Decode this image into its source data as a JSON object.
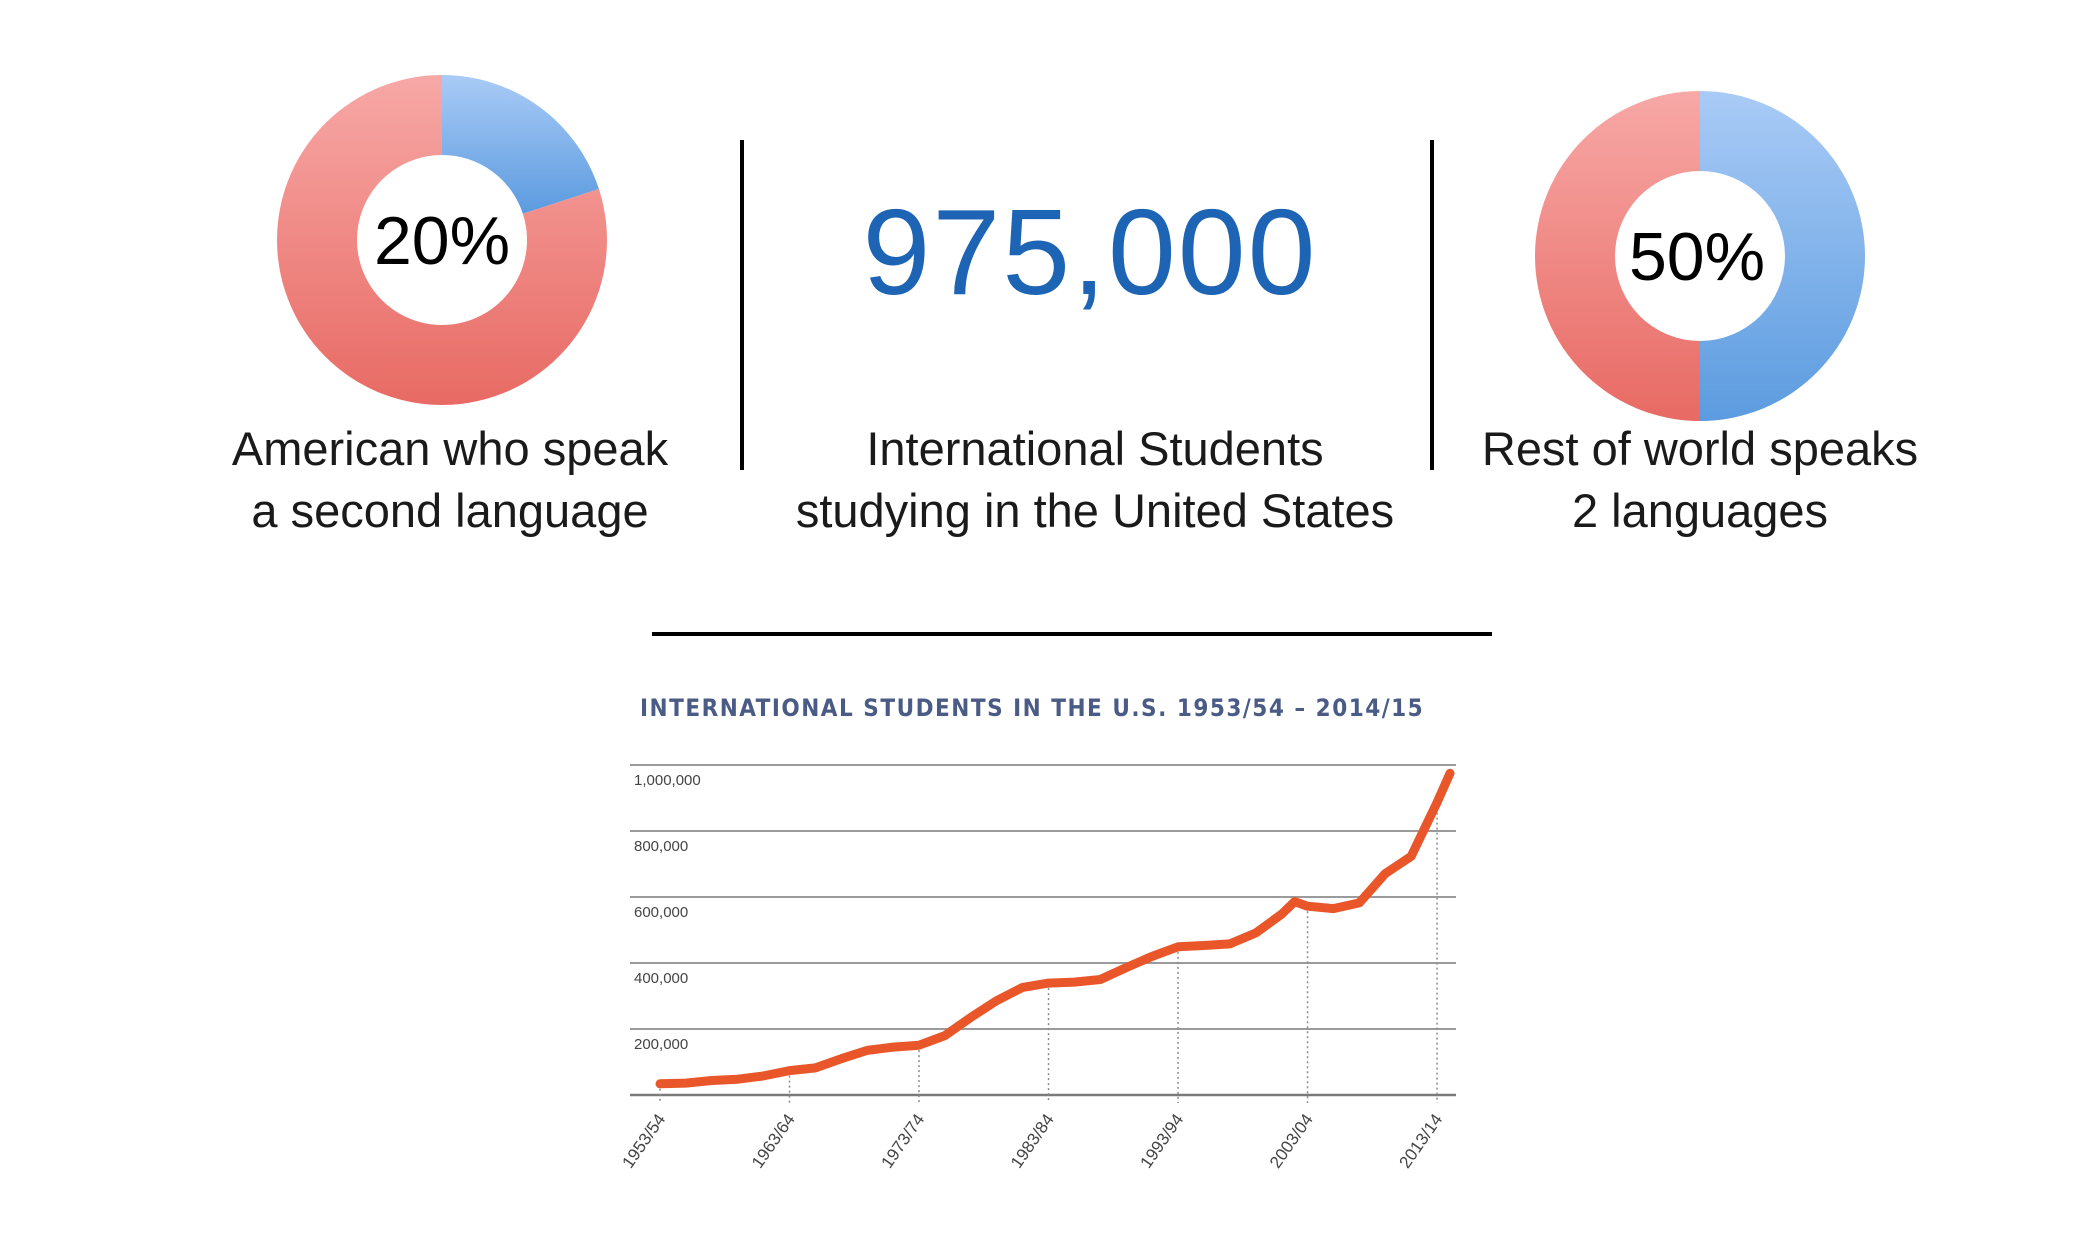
{
  "left_stat": {
    "percent_label": "20%",
    "caption_line1": "American who speak",
    "caption_line2": "a second language",
    "value_fraction": 0.2,
    "colors": {
      "primary": "#5b9bdf",
      "secondary": "#e86a64"
    }
  },
  "middle_stat": {
    "number": "975,000",
    "caption_line1": "International Students",
    "caption_line2": "studying in the United States",
    "color": "#1d64b4"
  },
  "right_stat": {
    "percent_label": "50%",
    "caption_line1": "Rest of world speaks",
    "caption_line2": "2 languages",
    "value_fraction": 0.5,
    "colors": {
      "primary": "#5b9bdf",
      "secondary": "#e86a64"
    }
  },
  "chart_data": {
    "type": "line",
    "title": "INTERNATIONAL STUDENTS IN THE U.S. 1953/54 – 2014/15",
    "xlabel": "",
    "ylabel": "",
    "ylim": [
      0,
      1000000
    ],
    "y_ticks": [
      "1,000,000",
      "800,000",
      "600,000",
      "400,000",
      "200,000"
    ],
    "y_tick_values": [
      1000000,
      800000,
      600000,
      400000,
      200000
    ],
    "x_tick_labels": [
      "1953/54",
      "1963/64",
      "1973/74",
      "1983/84",
      "1993/94",
      "2003/04",
      "2013/14"
    ],
    "x_tick_years": [
      1953,
      1963,
      1973,
      1983,
      1993,
      2003,
      2013
    ],
    "grid": true,
    "line_color": "#e8562a",
    "series": [
      {
        "name": "",
        "x": [
          1953,
          1955,
          1957,
          1959,
          1961,
          1963,
          1965,
          1967,
          1969,
          1971,
          1973,
          1975,
          1977,
          1979,
          1981,
          1983,
          1985,
          1987,
          1989,
          1991,
          1993,
          1995,
          1997,
          1999,
          2001,
          2002,
          2003,
          2005,
          2007,
          2009,
          2011,
          2013,
          2014
        ],
        "y": [
          34000,
          36000,
          44000,
          48000,
          58000,
          74000,
          82000,
          110000,
          135000,
          145000,
          151000,
          180000,
          235000,
          286000,
          326000,
          339000,
          342000,
          350000,
          386000,
          420000,
          449000,
          453000,
          458000,
          491000,
          548000,
          586000,
          572000,
          565000,
          582000,
          671000,
          723000,
          886000,
          975000
        ]
      }
    ]
  }
}
